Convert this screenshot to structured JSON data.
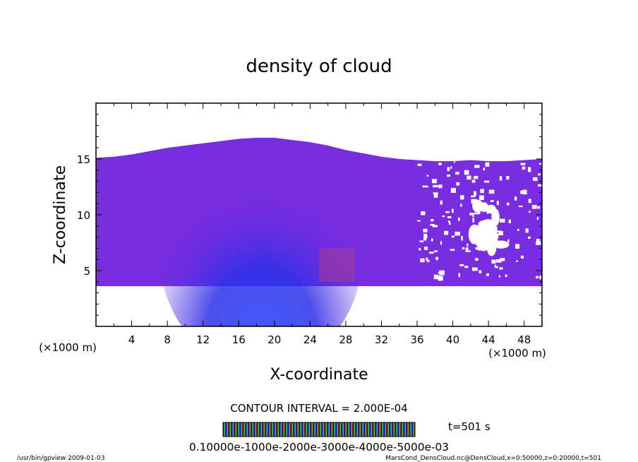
{
  "chart_data": {
    "type": "heatmap",
    "title": "density of cloud",
    "xlabel": "X-coordinate",
    "ylabel": "Z-coordinate",
    "x_unit": "(×1000 m)",
    "y_unit": "(×1000 m)",
    "xlim": [
      0,
      50
    ],
    "ylim": [
      0,
      20
    ],
    "x_ticks": [
      4,
      8,
      12,
      16,
      20,
      24,
      28,
      32,
      36,
      40,
      44,
      48
    ],
    "y_ticks": [
      5,
      10,
      15
    ],
    "contour_interval": "CONTOUR INTERVAL = 2.000E-04",
    "time_label": "t=501 s",
    "colorbar_labels": [
      "0.1000e-1",
      "0.1000e-2",
      "0.1000e-3",
      "0.1000e-4",
      "0.1000e-5",
      "0.1000e-3"
    ],
    "colorbar_label_text": "0.10000e-1000e-2000e-3000e-4000e-5000e-03",
    "footer_left": "/usr/bin/gpview   2009-01-03",
    "footer_right": "MarsCond_DensCloud.nc@DensCloud,x=0:50000,z=0:20000,t=501",
    "cloud_top_profile": [
      [
        0,
        15.1
      ],
      [
        2,
        15.2
      ],
      [
        4,
        15.4
      ],
      [
        6,
        15.7
      ],
      [
        8,
        16.0
      ],
      [
        10,
        16.2
      ],
      [
        12,
        16.4
      ],
      [
        14,
        16.6
      ],
      [
        16,
        16.8
      ],
      [
        18,
        16.9
      ],
      [
        20,
        16.9
      ],
      [
        22,
        16.7
      ],
      [
        24,
        16.5
      ],
      [
        26,
        16.2
      ],
      [
        28,
        15.8
      ],
      [
        30,
        15.5
      ],
      [
        32,
        15.2
      ],
      [
        34,
        15.0
      ],
      [
        36,
        14.9
      ],
      [
        38,
        14.8
      ],
      [
        40,
        14.8
      ],
      [
        42,
        14.9
      ],
      [
        44,
        14.8
      ],
      [
        46,
        14.8
      ],
      [
        48,
        14.9
      ],
      [
        50,
        15.0
      ]
    ],
    "cloud_base": 3.6,
    "colors": {
      "background_cloud": "#7a2ce0",
      "core": "#2a22ff",
      "dense_core": "#1e3cff",
      "warm_patch": "#a040c0"
    }
  }
}
